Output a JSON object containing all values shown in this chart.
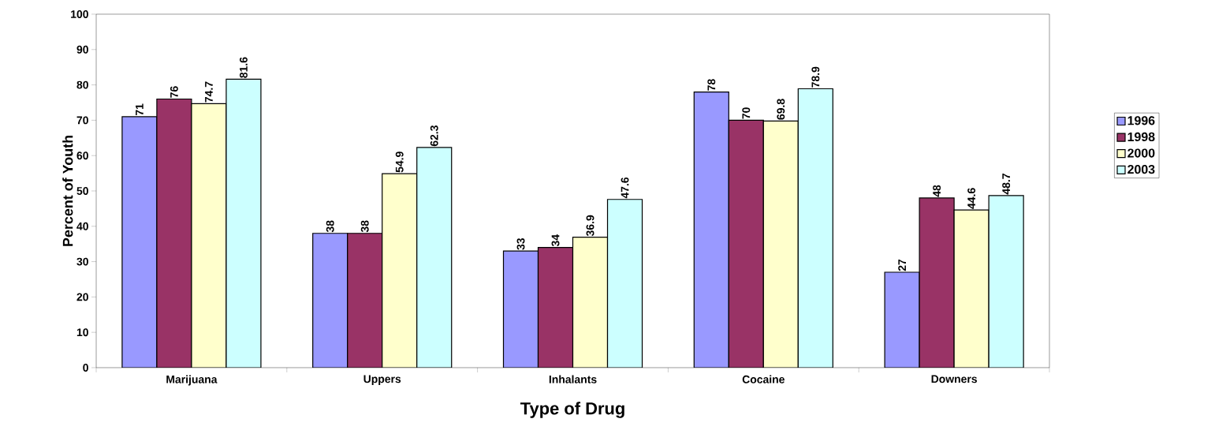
{
  "chart_data": {
    "type": "bar",
    "xlabel": "Type of Drug",
    "ylabel": "Percent of Youth",
    "categories": [
      "Marijuana",
      "Uppers",
      "Inhalants",
      "Cocaine",
      "Downers"
    ],
    "series": [
      {
        "name": "1996",
        "color": "#9999ff",
        "values": [
          71,
          38,
          33,
          78,
          27
        ]
      },
      {
        "name": "1998",
        "color": "#993366",
        "values": [
          76,
          38,
          34,
          70,
          48
        ]
      },
      {
        "name": "2000",
        "color": "#ffffcc",
        "values": [
          74.7,
          54.9,
          36.9,
          69.8,
          44.6
        ]
      },
      {
        "name": "2003",
        "color": "#ccffff",
        "values": [
          81.6,
          62.3,
          47.6,
          78.9,
          48.7
        ]
      }
    ],
    "ylim": [
      0,
      100
    ],
    "yticks": [
      0,
      10,
      20,
      30,
      40,
      50,
      60,
      70,
      80,
      90,
      100
    ],
    "data_labels": true,
    "legend": "right",
    "grid": false
  }
}
